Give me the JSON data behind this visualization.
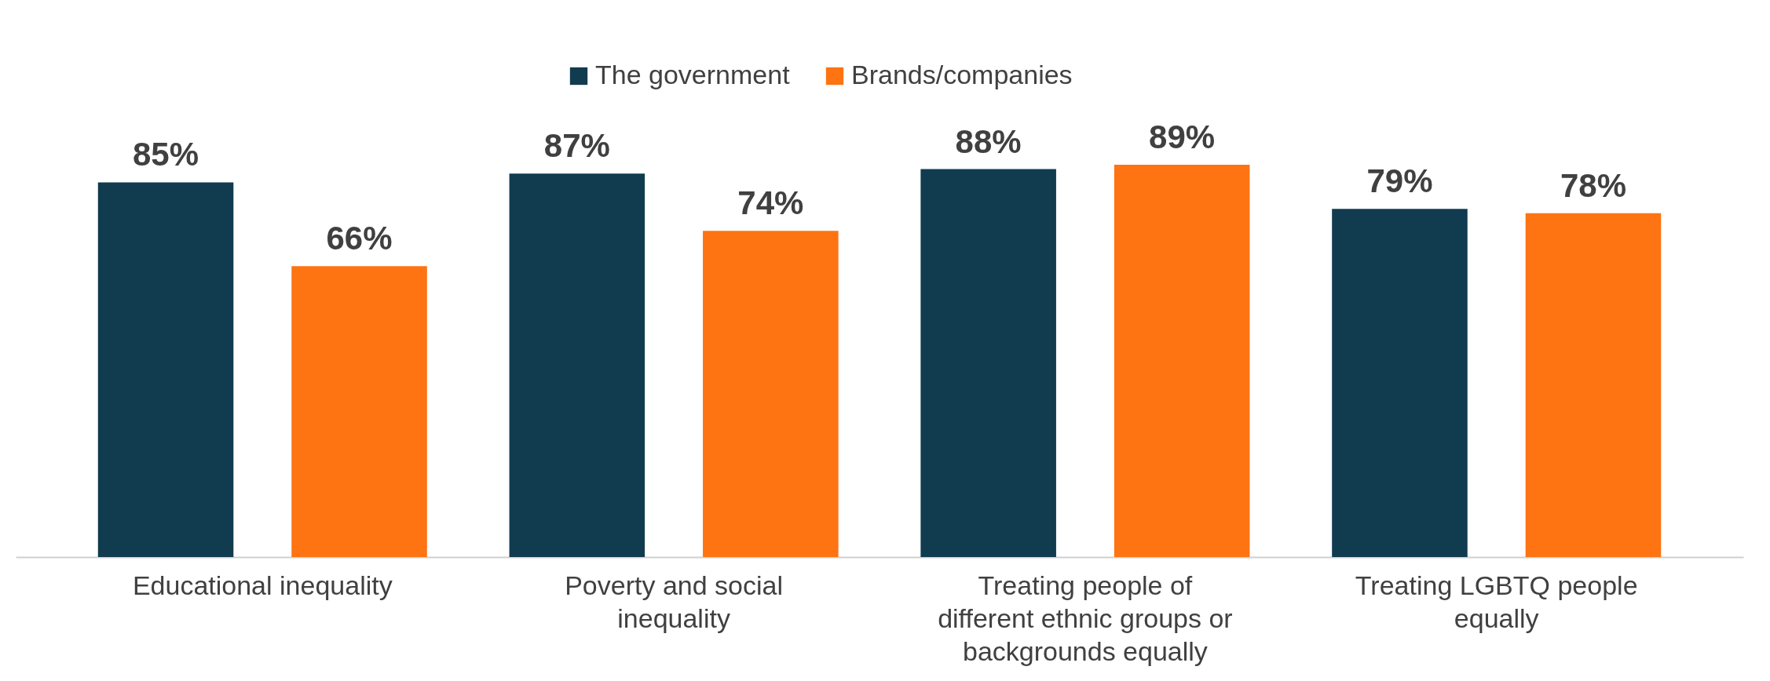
{
  "chart_data": {
    "type": "bar",
    "categories": [
      "Educational inequality",
      "Poverty and social inequality",
      "Treating people of different ethnic groups or backgrounds equally",
      "Treating LGBTQ people equally"
    ],
    "series": [
      {
        "name": "The government",
        "color": "#113b4f",
        "values": [
          85,
          87,
          88,
          79
        ],
        "value_labels": [
          "85%",
          "87%",
          "88%",
          "79%"
        ]
      },
      {
        "name": "Brands/companies",
        "color": "#fe7312",
        "values": [
          66,
          74,
          89,
          78
        ],
        "value_labels": [
          "66%",
          "74%",
          "89%",
          "78%"
        ]
      }
    ],
    "legend": "top",
    "grid": false
  }
}
